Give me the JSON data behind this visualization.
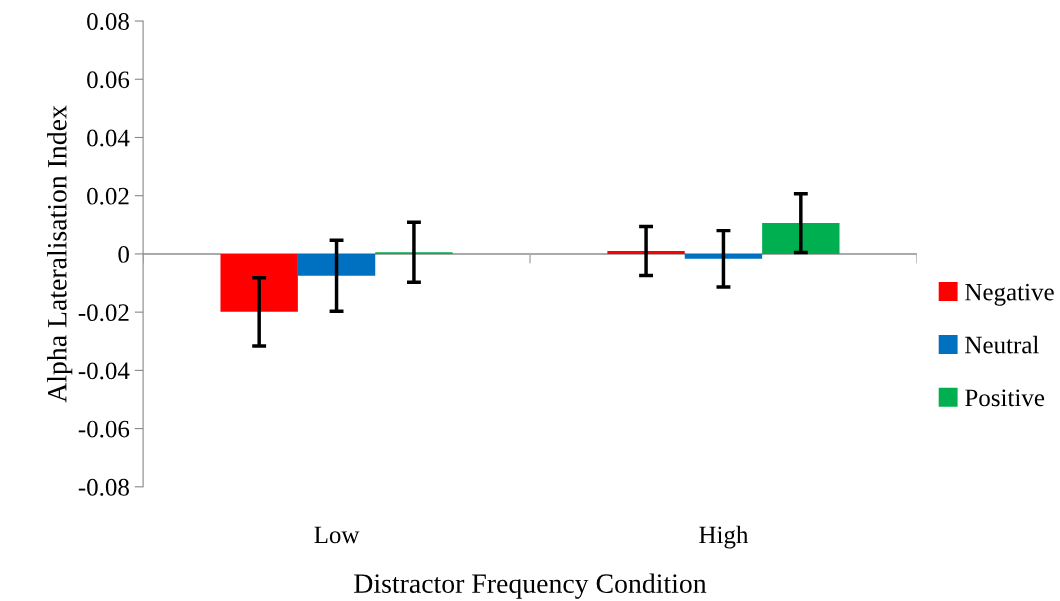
{
  "chart_data": {
    "type": "bar",
    "xlabel": "Distractor Frequency Condition",
    "ylabel": "Alpha Lateralisation Index",
    "categories": [
      "Low",
      "High"
    ],
    "series": [
      {
        "name": "Negative",
        "color": "#ff0000",
        "values": [
          -0.0199,
          0.001
        ],
        "errors": [
          0.0117,
          0.0084
        ]
      },
      {
        "name": "Neutral",
        "color": "#0070c0",
        "values": [
          -0.0075,
          -0.0017
        ],
        "errors": [
          0.0122,
          0.0097
        ]
      },
      {
        "name": "Positive",
        "color": "#00b050",
        "values": [
          0.0006,
          0.0106
        ],
        "errors": [
          0.0103,
          0.0101
        ]
      }
    ],
    "ylim": [
      -0.08,
      0.08
    ],
    "yticks": [
      {
        "value": -0.08,
        "label": "-0.08"
      },
      {
        "value": -0.06,
        "label": "-0.06"
      },
      {
        "value": -0.04,
        "label": "-0.04"
      },
      {
        "value": -0.02,
        "label": "-0.02"
      },
      {
        "value": 0,
        "label": "0"
      },
      {
        "value": 0.02,
        "label": "0.02"
      },
      {
        "value": 0.04,
        "label": "0.04"
      },
      {
        "value": 0.06,
        "label": "0.06"
      },
      {
        "value": 0.08,
        "label": "0.08"
      }
    ],
    "legend": "right"
  }
}
